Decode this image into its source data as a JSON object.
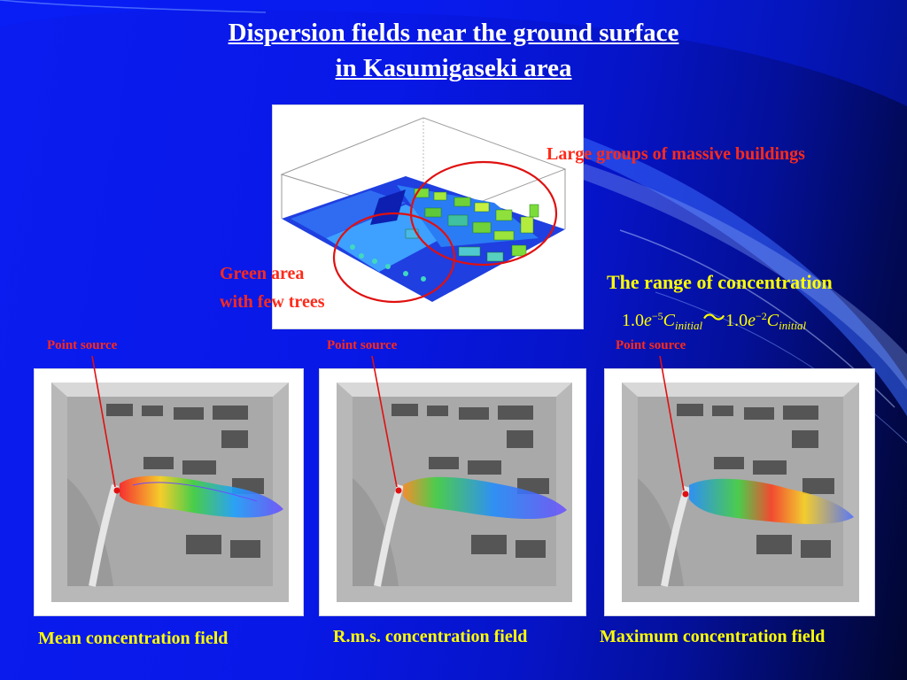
{
  "title": {
    "line1": "Dispersion fields near the ground surface",
    "line2": "in Kasumigaseki area"
  },
  "annotations": {
    "buildings": "Large groups of massive buildings",
    "green_line1": "Green area",
    "green_line2": "with few trees"
  },
  "concentration_range": {
    "heading": "The range of concentration",
    "low_mantissa": "1.0",
    "low_base": "e",
    "low_exponent": "−5",
    "symbol": "C",
    "subscript": "initial",
    "separator": "〜",
    "high_mantissa": "1.0",
    "high_base": "e",
    "high_exponent": "−2"
  },
  "fields": [
    {
      "source_label": "Point source",
      "caption": "Mean concentration field"
    },
    {
      "source_label": "Point source",
      "caption": "R.m.s. concentration field"
    },
    {
      "source_label": "Point source",
      "caption": "Maximum concentration field"
    }
  ],
  "colors": {
    "title": "#ffffff",
    "annotation_red": "#ff2a1a",
    "highlight_yellow": "#ffff00",
    "circle": "#e01010"
  }
}
